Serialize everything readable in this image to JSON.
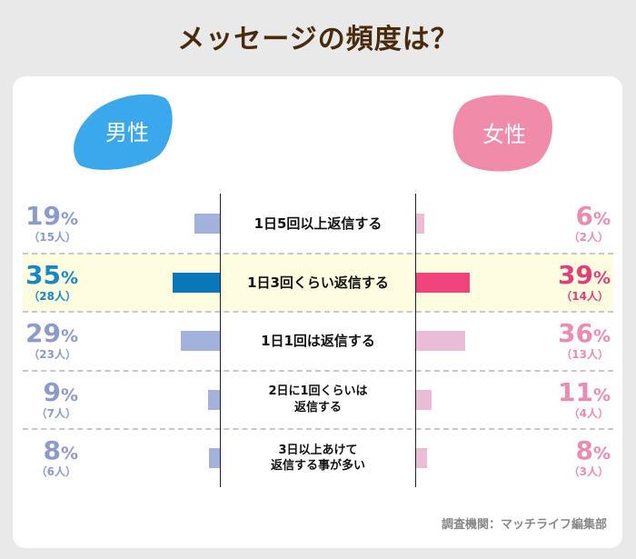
{
  "chart_data": {
    "type": "bar",
    "title": "メッセージの頻度は？",
    "categories": [
      "1日5回以上返信する",
      "1日3回くらい返信する",
      "1日1回は返信する",
      "2日に1回くらいは\n返信する",
      "3日以上あけて\n返信する事が多い"
    ],
    "series": [
      {
        "name": "男性",
        "values": [
          19,
          35,
          29,
          9,
          8
        ],
        "counts": [
          "（15人）",
          "（28人）",
          "（23人）",
          "（7人）",
          "（6人）"
        ]
      },
      {
        "name": "女性",
        "values": [
          6,
          39,
          36,
          11,
          8
        ],
        "counts": [
          "（2人）",
          "（14人）",
          "（13人）",
          "（4人）",
          "（3人）"
        ]
      }
    ],
    "unit": "%",
    "highlight_index": 1,
    "colors": {
      "male_bar": "#a3b2dc",
      "male_bar_highlight": "#0a78b8",
      "male_text": "#8c9bc9",
      "male_text_highlight": "#1a86c4",
      "male_blob": "#3aa8ea",
      "female_bar": "#e9bdd5",
      "female_bar_highlight": "#f0457c",
      "female_text": "#e98cb4",
      "female_text_highlight": "#e0407a",
      "female_blob": "#f08caa",
      "highlight_row": "#fdfce0"
    }
  },
  "credit": "調査機関：マッチライフ編集部"
}
